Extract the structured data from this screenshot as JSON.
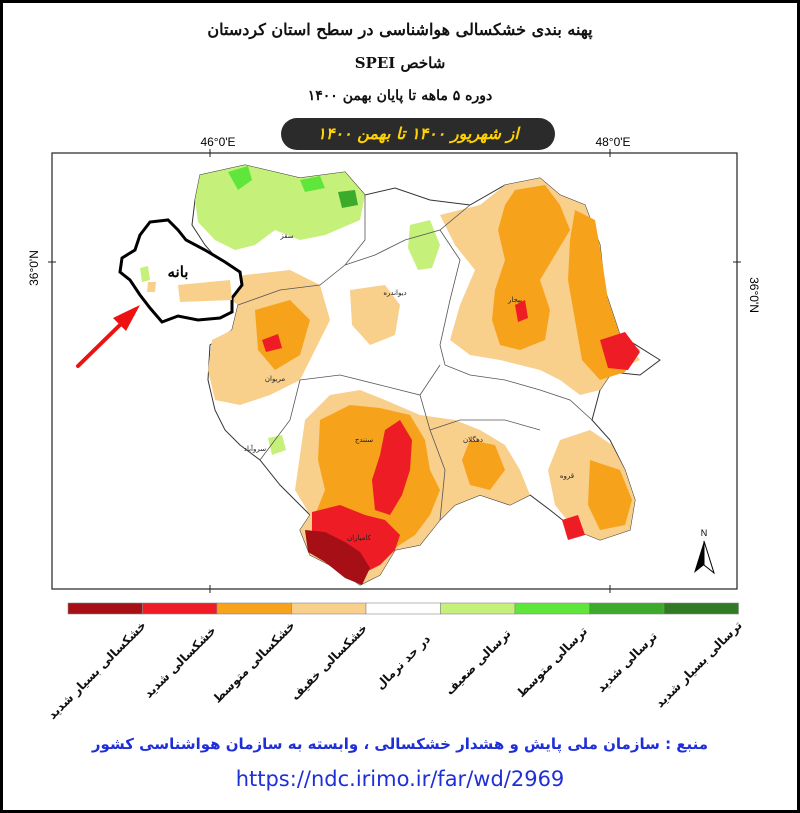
{
  "title": {
    "line1": "پهنه بندی خشکسالی هواشناسی در سطح استان کردستان",
    "line2": "شاخص SPEI",
    "line3": "دوره ۵ ماهه تا پایان بهمن ۱۴۰۰",
    "period_badge": "از شهریور ۱۴۰۰ تا بهمن ۱۴۰۰"
  },
  "map": {
    "lon_labels": [
      "46°0'E",
      "48°0'E"
    ],
    "lat_labels": [
      "36°0'N",
      "36°0'N"
    ],
    "north_label": "N",
    "highlight_label": "بانه",
    "cities": [
      "سقز",
      "دیواندره",
      "بیجار",
      "مریوان",
      "سروآباد",
      "سنندج",
      "دهگلان",
      "قروه",
      "کامیاران"
    ]
  },
  "legend": {
    "classes": [
      {
        "label": "خشکسالی بسیار شدید",
        "color": "#a50f15"
      },
      {
        "label": "خشکسالی شدید",
        "color": "#ee1c25"
      },
      {
        "label": "خشکسالی متوسط",
        "color": "#f7a21b"
      },
      {
        "label": "خشکسالی خفیف",
        "color": "#f9cf8c"
      },
      {
        "label": "در حد نرمال",
        "color": "#ffffff"
      },
      {
        "label": "ترسالی ضعیف",
        "color": "#c5f07a"
      },
      {
        "label": "ترسالی متوسط",
        "color": "#5fe63a"
      },
      {
        "label": "ترسالی شدید",
        "color": "#3caa2a"
      },
      {
        "label": "ترسالی بسیار شدید",
        "color": "#2f7a23"
      }
    ]
  },
  "source": {
    "text": "منبع : سازمان ملی پایش و هشدار خشکسالی ، وابسته به سازمان هواشناسی کشور",
    "url": "https://ndc.irimo.ir/far/wd/2969"
  }
}
